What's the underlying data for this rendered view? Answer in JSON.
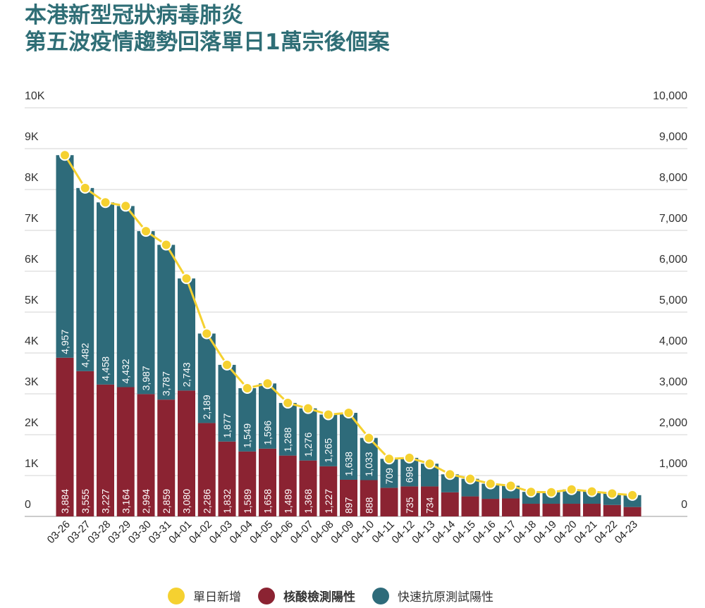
{
  "title": {
    "line1": "本港新型冠狀病毒肺炎",
    "line2": "第五波疫情趨勢回落單日1萬宗後個案"
  },
  "colors": {
    "title": "#2f6e76",
    "pcr": "#8b2332",
    "rat": "#2e6b7a",
    "daily": "#f5d130"
  },
  "chart_data": {
    "type": "bar",
    "stacked": true,
    "categories": [
      "03-26",
      "03-27",
      "03-28",
      "03-29",
      "03-30",
      "03-31",
      "04-01",
      "04-02",
      "04-03",
      "04-04",
      "04-05",
      "04-06",
      "04-07",
      "04-08",
      "04-09",
      "04-10",
      "04-11",
      "04-12",
      "04-13",
      "04-14",
      "04-15",
      "04-16",
      "04-17",
      "04-18",
      "04-19",
      "04-20",
      "04-21",
      "04-22",
      "04-23"
    ],
    "series": [
      {
        "name": "核酸檢測陽性",
        "type": "bar",
        "color": "#8b2332",
        "values": [
          3884,
          3555,
          3227,
          3164,
          2994,
          2859,
          3080,
          2286,
          1832,
          1589,
          1658,
          1489,
          1368,
          1227,
          897,
          888,
          700,
          735,
          734,
          590,
          490,
          430,
          440,
          310,
          310,
          310,
          310,
          280,
          230
        ],
        "labels": [
          "3,884",
          "3,555",
          "3,227",
          "3,164",
          "2,994",
          "2,859",
          "3,080",
          "2,286",
          "1,832",
          "1,589",
          "1,658",
          "1,489",
          "1,368",
          "1,227",
          "897",
          "888",
          "",
          "735",
          "734",
          "",
          "",
          "",
          "",
          "",
          "",
          "",
          "",
          "",
          ""
        ]
      },
      {
        "name": "快速抗原測試陽性",
        "type": "bar",
        "color": "#2e6b7a",
        "values": [
          4957,
          4482,
          4458,
          4432,
          3987,
          3787,
          2743,
          2189,
          1877,
          1549,
          1596,
          1288,
          1276,
          1265,
          1638,
          1033,
          709,
          698,
          556,
          440,
          430,
          370,
          310,
          290,
          280,
          350,
          300,
          280,
          290
        ],
        "labels": [
          "4,957",
          "4,482",
          "4,458",
          "4,432",
          "3,987",
          "3,787",
          "2,743",
          "2,189",
          "1,877",
          "1,549",
          "1,596",
          "1,288",
          "1,276",
          "1,265",
          "1,638",
          "1,033",
          "709",
          "698",
          "",
          "",
          "",
          "",
          "",
          "",
          "",
          "",
          "",
          "",
          ""
        ]
      },
      {
        "name": "單日新增",
        "type": "line",
        "color": "#f5d130",
        "values": [
          8841,
          8037,
          7685,
          7596,
          6981,
          6646,
          5823,
          4475,
          3709,
          3138,
          3254,
          2777,
          2644,
          2492,
          2535,
          1921,
          1409,
          1433,
          1290,
          1030,
          920,
          800,
          750,
          600,
          590,
          660,
          610,
          560,
          520
        ]
      }
    ],
    "yleft": {
      "ticks": [
        "0",
        "1K",
        "2K",
        "3K",
        "4K",
        "5K",
        "6K",
        "7K",
        "8K",
        "9K",
        "10K"
      ],
      "range": [
        0,
        10000
      ]
    },
    "yright": {
      "ticks": [
        "0",
        "1,000",
        "2,000",
        "3,000",
        "4,000",
        "5,000",
        "6,000",
        "7,000",
        "8,000",
        "9,000",
        "10,000"
      ],
      "range": [
        0,
        10000
      ]
    },
    "grid": true,
    "legend_position": "bottom"
  }
}
